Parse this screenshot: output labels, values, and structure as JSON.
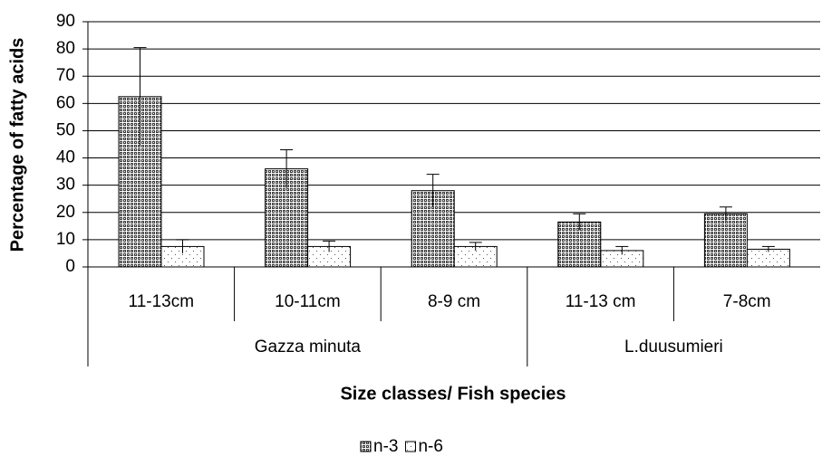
{
  "chart_data": {
    "type": "bar",
    "y_label": "Percentage of fatty acids",
    "x_label": "Size classes/ Fish species",
    "categories": [
      "11-13cm",
      "10-11cm",
      "8-9 cm",
      "11-13  cm",
      "7-8cm"
    ],
    "groups": [
      {
        "name": "Gazza minuta",
        "categories": 3
      },
      {
        "name": "L.duusumieri",
        "categories": 2
      }
    ],
    "series": [
      {
        "name": "n-3",
        "color": "#3a3a3a",
        "values": [
          62.5,
          36,
          28,
          16.5,
          19.5
        ],
        "errors": [
          18,
          7,
          6,
          3,
          2.5
        ]
      },
      {
        "name": "n-6",
        "color": "#ffffff",
        "values": [
          7.5,
          7.5,
          7.5,
          6,
          6.5
        ],
        "errors": [
          2.5,
          2,
          1.5,
          1.5,
          1
        ]
      }
    ],
    "ylim": [
      0,
      90
    ],
    "yticks": [
      0,
      10,
      20,
      30,
      40,
      50,
      60,
      70,
      80,
      90
    ],
    "grid": true,
    "legend": "bottom"
  }
}
